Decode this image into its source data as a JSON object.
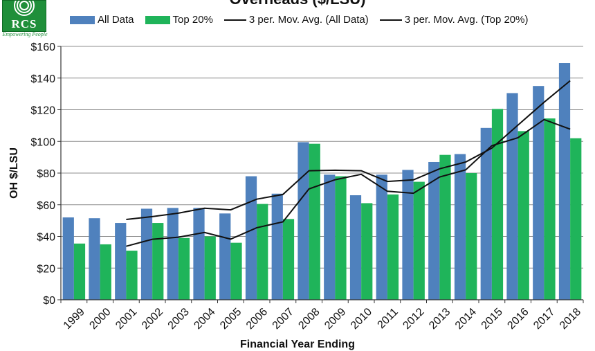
{
  "logo": {
    "text": "RCS",
    "tagline": "Empowering People"
  },
  "chart_data": {
    "type": "bar",
    "title": "Overheads ($/LSU)",
    "xlabel": "Financial Year Ending",
    "ylabel": "OH $/LSU",
    "ylim": [
      0,
      160
    ],
    "yticks": [
      0,
      20,
      40,
      60,
      80,
      100,
      120,
      140,
      160
    ],
    "ytick_labels": [
      "$0",
      "$20",
      "$40",
      "$60",
      "$80",
      "$100",
      "$120",
      "$140",
      "$160"
    ],
    "grid": true,
    "legend_position": "top",
    "categories": [
      "1999",
      "2000",
      "2001",
      "2002",
      "2003",
      "2004",
      "2005",
      "2006",
      "2007",
      "2008",
      "2009",
      "2010",
      "2011",
      "2012",
      "2013",
      "2014",
      "2015",
      "2016",
      "2017",
      "2018"
    ],
    "series": [
      {
        "name": "All Data",
        "kind": "bar",
        "color": "#4f81bd",
        "values": [
          52,
          51.5,
          48.5,
          57.5,
          58,
          58,
          54.5,
          78,
          67,
          99.5,
          79,
          66,
          79,
          82,
          87,
          92,
          108.5,
          130.5,
          135,
          149.5
        ]
      },
      {
        "name": "Top 20%",
        "kind": "bar",
        "color": "#1fb45a",
        "values": [
          35.5,
          35,
          31,
          48.5,
          39,
          40,
          36,
          60.5,
          51,
          98.5,
          78,
          61,
          66.5,
          74.5,
          91.5,
          80,
          120.5,
          106.5,
          114.5,
          102
        ]
      },
      {
        "name": "3 per. Mov. Avg. (All Data)",
        "kind": "line",
        "color": "#111111",
        "values": [
          null,
          null,
          50.7,
          52.5,
          54.7,
          57.8,
          56.8,
          63.5,
          66.5,
          81.5,
          81.8,
          81.5,
          74.7,
          75.7,
          82.7,
          87,
          95.8,
          110.3,
          124.7,
          138.3
        ]
      },
      {
        "name": "3 per. Mov. Avg. (Top 20%)",
        "kind": "line",
        "color": "#111111",
        "values": [
          null,
          null,
          33.8,
          38.2,
          39.5,
          42.5,
          38.3,
          45.5,
          49.2,
          70,
          75.8,
          79.2,
          68.5,
          67.3,
          77.5,
          82,
          97.3,
          102.3,
          113.8,
          107.7
        ]
      }
    ]
  }
}
